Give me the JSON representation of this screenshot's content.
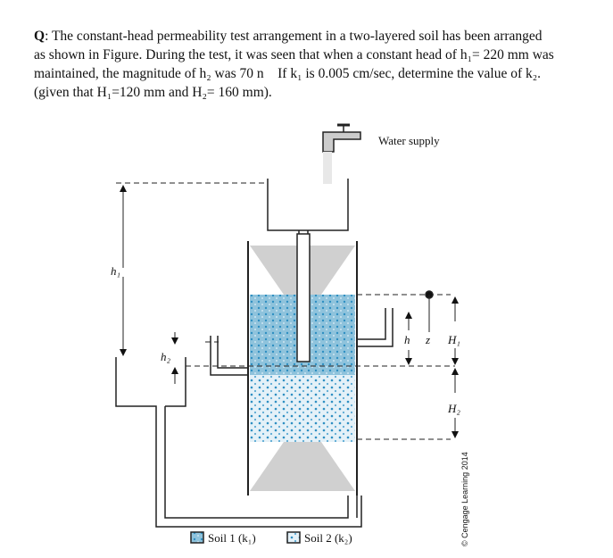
{
  "question": {
    "label": "Q",
    "lines": [
      ": The constant-head permeability test arrangement in a two-layered soil has been arranged",
      "as shown in Figure. During the test, it was seen that when a constant head of h₁= 220 mm was",
      "maintained, the magnitude of h₂ was 70 n    If k₁ is 0.005 cm/sec, determine the value of k₂.",
      "(given that H₁=120 mm and H₂= 160 mm)."
    ]
  },
  "figure": {
    "water_supply": "Water supply",
    "h1": "h₁",
    "h2": "h₂",
    "h": "h",
    "z": "z",
    "H1": "H₁",
    "H2": "H₂",
    "legend": [
      "Soil 1 (k₁)",
      "Soil 2 (k₂)"
    ],
    "credit": "© Cengage Learning 2014"
  }
}
